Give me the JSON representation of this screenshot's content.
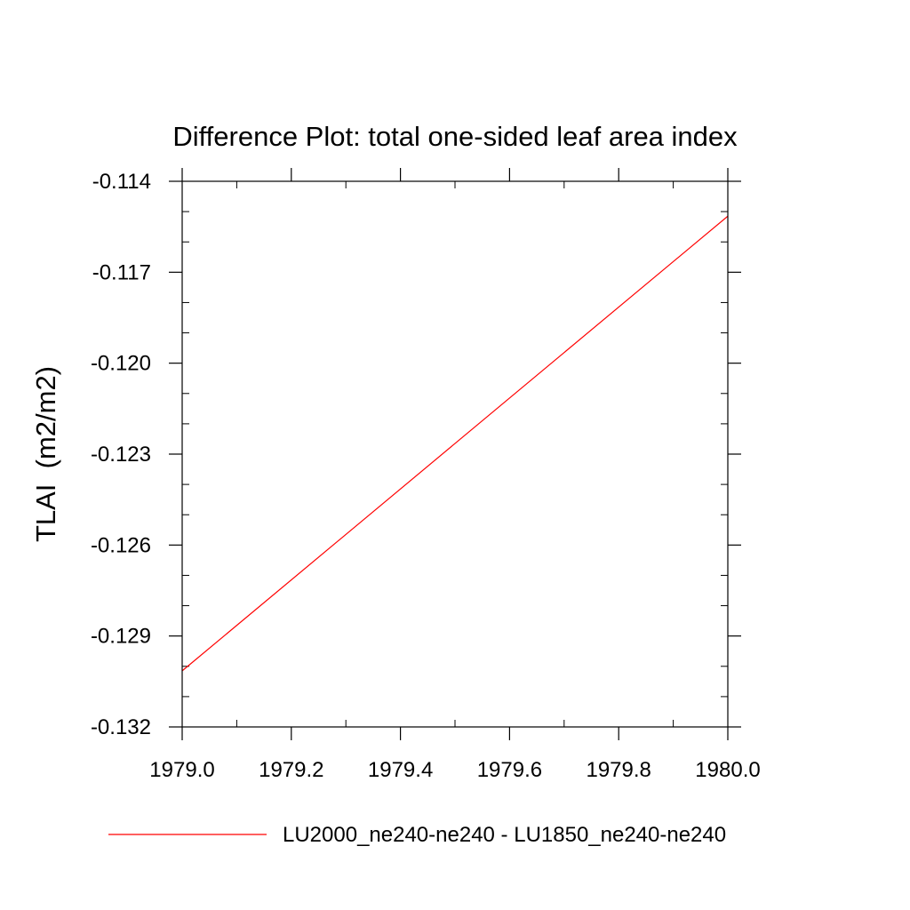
{
  "chart_data": {
    "type": "line",
    "title": "Difference Plot: total one-sided leaf area index",
    "xlabel": "",
    "ylabel": "TLAI  (m2/m2)",
    "xlim": [
      1979.0,
      1980.0
    ],
    "ylim": [
      -0.132,
      -0.114
    ],
    "x_ticks": [
      1979.0,
      1979.2,
      1979.4,
      1979.6,
      1979.8,
      1980.0
    ],
    "x_tick_labels": [
      "1979.0",
      "1979.2",
      "1979.4",
      "1979.6",
      "1979.8",
      "1980.0"
    ],
    "y_ticks": [
      -0.132,
      -0.129,
      -0.126,
      -0.123,
      -0.12,
      -0.117,
      -0.114
    ],
    "y_tick_labels": [
      "-0.132",
      "-0.129",
      "-0.126",
      "-0.123",
      "-0.120",
      "-0.117",
      "-0.114"
    ],
    "x_minor_step": 0.1,
    "y_minor_step": 0.001,
    "grid": false,
    "legend_position": "bottom",
    "series": [
      {
        "name": "LU2000_ne240-ne240 - LU1850_ne240-ne240",
        "color": "#ff0000",
        "x": [
          1979.0,
          1980.0
        ],
        "y": [
          -0.13015,
          -0.11515
        ]
      }
    ]
  }
}
